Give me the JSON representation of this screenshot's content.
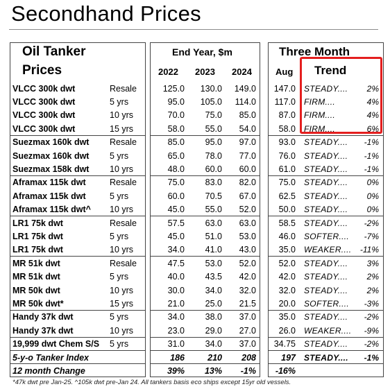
{
  "title": "Secondhand Prices",
  "headers": {
    "left_line1": "Oil Tanker",
    "left_line2": "Prices",
    "mid_group": "End Year, $m",
    "years": [
      "2022",
      "2023",
      "2024"
    ],
    "right_group": "Three Month",
    "aug": "Aug",
    "trend": "Trend"
  },
  "rows": [
    {
      "name": "VLCC 300k dwt",
      "age": "Resale",
      "y2022": "125.0",
      "y2023": "130.0",
      "y2024": "149.0",
      "aug": "147.0",
      "trend": "STEADY....",
      "pct": "2%"
    },
    {
      "name": "VLCC 300k dwt",
      "age": "5 yrs",
      "y2022": "95.0",
      "y2023": "105.0",
      "y2024": "114.0",
      "aug": "117.0",
      "trend": "FIRM....",
      "pct": "4%"
    },
    {
      "name": "VLCC 300k dwt",
      "age": "10 yrs",
      "y2022": "70.0",
      "y2023": "75.0",
      "y2024": "85.0",
      "aug": "87.0",
      "trend": "FIRM....",
      "pct": "4%"
    },
    {
      "name": "VLCC 300k dwt",
      "age": "15 yrs",
      "y2022": "58.0",
      "y2023": "55.0",
      "y2024": "54.0",
      "aug": "58.0",
      "trend": "FIRM....",
      "pct": "6%"
    },
    {
      "name": "Suezmax 160k dwt",
      "age": "Resale",
      "y2022": "85.0",
      "y2023": "95.0",
      "y2024": "97.0",
      "aug": "93.0",
      "trend": "STEADY....",
      "pct": "-1%"
    },
    {
      "name": "Suezmax 160k dwt",
      "age": "5 yrs",
      "y2022": "65.0",
      "y2023": "78.0",
      "y2024": "77.0",
      "aug": "76.0",
      "trend": "STEADY....",
      "pct": "-1%"
    },
    {
      "name": "Suezmax 158k dwt",
      "age": "10 yrs",
      "y2022": "48.0",
      "y2023": "60.0",
      "y2024": "60.0",
      "aug": "61.0",
      "trend": "STEADY....",
      "pct": "-1%"
    },
    {
      "name": "Aframax 115k dwt",
      "age": "Resale",
      "y2022": "75.0",
      "y2023": "83.0",
      "y2024": "82.0",
      "aug": "75.0",
      "trend": "STEADY....",
      "pct": "0%"
    },
    {
      "name": "Aframax 115k dwt",
      "age": "5 yrs",
      "y2022": "60.0",
      "y2023": "70.5",
      "y2024": "67.0",
      "aug": "62.5",
      "trend": "STEADY....",
      "pct": "0%"
    },
    {
      "name": "Aframax 115k dwt^",
      "age": "10 yrs",
      "y2022": "45.0",
      "y2023": "55.0",
      "y2024": "52.0",
      "aug": "50.0",
      "trend": "STEADY....",
      "pct": "0%"
    },
    {
      "name": "LR1 75k dwt",
      "age": "Resale",
      "y2022": "57.5",
      "y2023": "63.0",
      "y2024": "63.0",
      "aug": "58.5",
      "trend": "STEADY....",
      "pct": "-2%"
    },
    {
      "name": "LR1 75k dwt",
      "age": "5 yrs",
      "y2022": "45.0",
      "y2023": "51.0",
      "y2024": "53.0",
      "aug": "46.0",
      "trend": "SOFTER....",
      "pct": "-7%"
    },
    {
      "name": "LR1 75k dwt",
      "age": "10 yrs",
      "y2022": "34.0",
      "y2023": "41.0",
      "y2024": "43.0",
      "aug": "35.0",
      "trend": "WEAKER....",
      "pct": "-11%"
    },
    {
      "name": "MR 51k dwt",
      "age": "Resale",
      "y2022": "47.5",
      "y2023": "53.0",
      "y2024": "52.0",
      "aug": "52.0",
      "trend": "STEADY....",
      "pct": "3%"
    },
    {
      "name": "MR 51k dwt",
      "age": "5 yrs",
      "y2022": "40.0",
      "y2023": "43.5",
      "y2024": "42.0",
      "aug": "42.0",
      "trend": "STEADY....",
      "pct": "2%"
    },
    {
      "name": "MR 50k dwt",
      "age": "10 yrs",
      "y2022": "30.0",
      "y2023": "34.0",
      "y2024": "32.0",
      "aug": "32.0",
      "trend": "STEADY....",
      "pct": "2%"
    },
    {
      "name": "MR 50k dwt*",
      "age": "15 yrs",
      "y2022": "21.0",
      "y2023": "25.0",
      "y2024": "21.5",
      "aug": "20.0",
      "trend": "SOFTER....",
      "pct": "-3%"
    },
    {
      "name": "Handy 37k dwt",
      "age": "5 yrs",
      "y2022": "34.0",
      "y2023": "38.0",
      "y2024": "37.0",
      "aug": "35.0",
      "trend": "STEADY....",
      "pct": "-2%"
    },
    {
      "name": "Handy 37k dwt",
      "age": "10 yrs",
      "y2022": "23.0",
      "y2023": "29.0",
      "y2024": "27.0",
      "aug": "26.0",
      "trend": "WEAKER....",
      "pct": "-9%"
    },
    {
      "name": "19,999 dwt Chem S/S",
      "age": "5 yrs",
      "y2022": "31.0",
      "y2023": "34.0",
      "y2024": "37.0",
      "aug": "34.75",
      "trend": "STEADY....",
      "pct": "-2%"
    }
  ],
  "index_row": {
    "name": "5-y-o Tanker Index",
    "y2022": "186",
    "y2023": "210",
    "y2024": "208",
    "aug": "197",
    "trend": "STEADY....",
    "pct": "-1%"
  },
  "change_row": {
    "name": "12 month Change",
    "y2022": "39%",
    "y2023": "13%",
    "y2024": "-1%",
    "aug": "-16%"
  },
  "footnote": "*47k dwt pre Jan-25. ^105k dwt pre-Jan 24. All tankers basis eco ships except 15yr old vessels.",
  "highlight_color": "#e41e1e"
}
